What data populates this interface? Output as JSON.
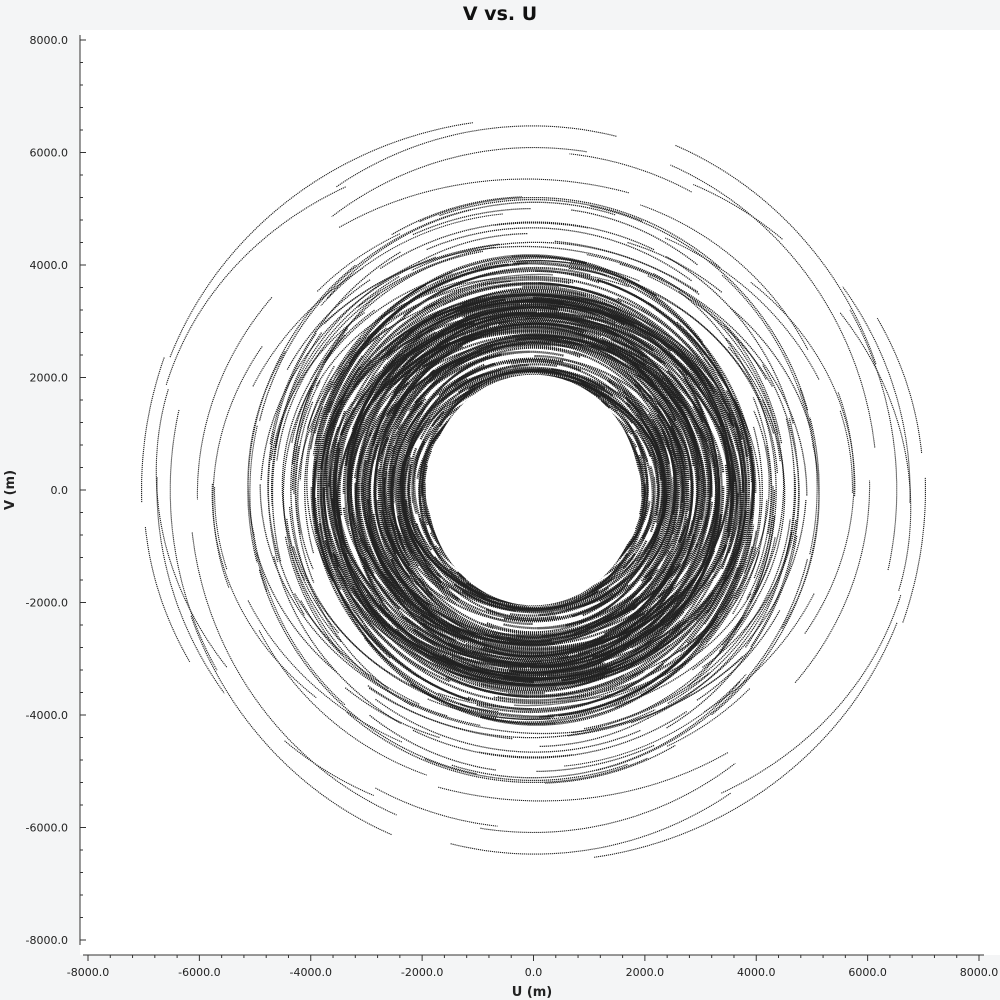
{
  "chart_data": {
    "type": "scatter",
    "title": "V vs. U",
    "xlabel": "U (m)",
    "ylabel": "V (m)",
    "xlim": [
      -8000,
      8000
    ],
    "ylim": [
      -8000,
      8000
    ],
    "xticks": [
      "-8000.0",
      "-6000.0",
      "-4000.0",
      "-2000.0",
      "0.0",
      "2000.0",
      "4000.0",
      "6000.0",
      "8000.0"
    ],
    "yticks": [
      "8000.0",
      "6000.0",
      "4000.0",
      "2000.0",
      "0.0",
      "-2000.0",
      "-4000.0",
      "-6000.0",
      "-8000.0"
    ],
    "grid": false,
    "marker_color": "#222222",
    "description_of_data": "uv-coverage tracks: many elliptical arcs centred on origin, dense ring between radius ~2000 and ~4000, sparse outer arcs to ~6500",
    "point_sample": [
      [
        0,
        2000
      ],
      [
        0,
        -2000
      ],
      [
        2000,
        0
      ],
      [
        -2000,
        0
      ],
      [
        0,
        3600
      ],
      [
        0,
        -3600
      ],
      [
        3600,
        0
      ],
      [
        -3600,
        0
      ],
      [
        2800,
        2400
      ],
      [
        -2800,
        2400
      ],
      [
        2800,
        -2400
      ],
      [
        -2800,
        -2400
      ],
      [
        0,
        6100
      ],
      [
        0,
        -6100
      ],
      [
        6600,
        0
      ],
      [
        -6600,
        0
      ],
      [
        4300,
        6000
      ],
      [
        -4300,
        6000
      ],
      [
        4300,
        -6000
      ],
      [
        -4300,
        -6000
      ]
    ]
  }
}
